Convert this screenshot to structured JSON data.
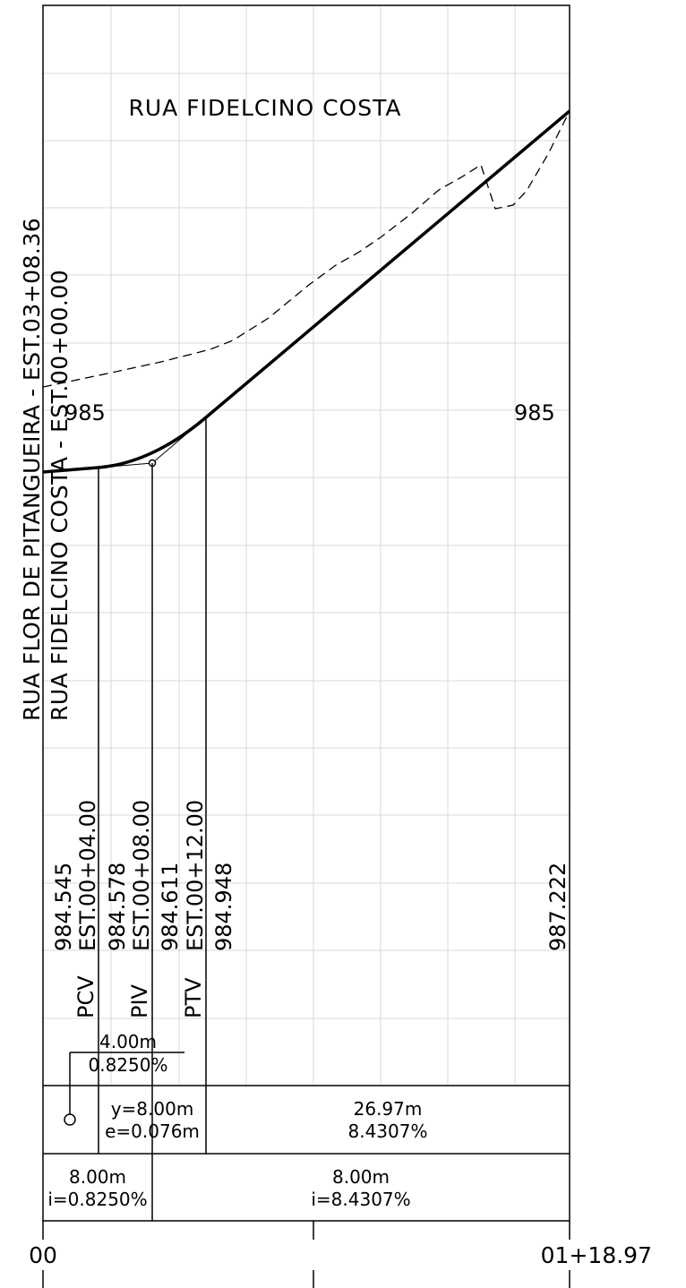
{
  "street_title": "RUA FIDELCINO COSTA",
  "left_label_outer": "RUA FLOR DE PITANGUEIRA - EST.03+08.36",
  "left_label_inner": "RUA FIDELCINO COSTA - EST.00+00.00",
  "elevation_ref_left": "985",
  "elevation_ref_right": "985",
  "stations": [
    {
      "name": "PCV",
      "station": "EST.00+04.00",
      "elevation": "984.545"
    },
    {
      "name": "PIV",
      "station": "EST.00+08.00",
      "elevation": "984.578"
    },
    {
      "name": "PTV",
      "station": "EST.00+12.00",
      "elevation": "984.611"
    },
    {
      "name": "",
      "station": "",
      "elevation": "984.948"
    },
    {
      "name": "",
      "station": "",
      "elevation": "987.222"
    }
  ],
  "upper_annotation": {
    "length": "4.00m",
    "slope": "0.8250%"
  },
  "curve_row": {
    "y": "y=8.00m",
    "e": "e=0.076m",
    "length": "26.97m",
    "slope": "8.4307%"
  },
  "slope_row": [
    {
      "length": "8.00m",
      "slope": "i=0.8250%"
    },
    {
      "length": "8.00m",
      "slope": "i=8.4307%"
    }
  ],
  "axis": {
    "start": "00",
    "end": "01+18.97"
  },
  "colors": {
    "line": "#000000",
    "grid": "#d8d8d8",
    "background": "#ffffff"
  }
}
